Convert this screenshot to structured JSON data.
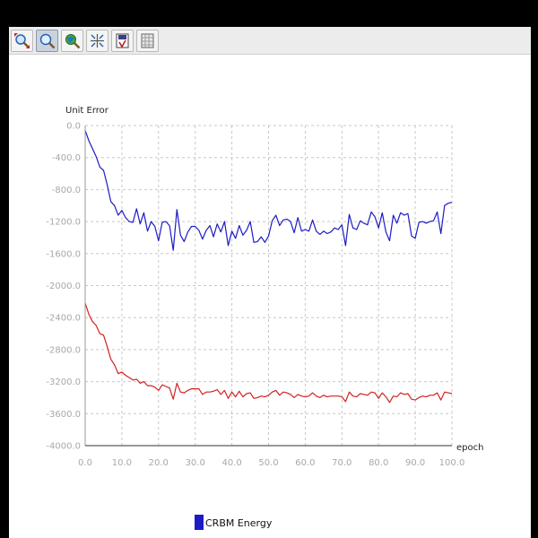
{
  "toolbar": {
    "buttons": [
      {
        "icon": "zoom-fit-icon",
        "active": false
      },
      {
        "icon": "zoom-icon",
        "active": true
      },
      {
        "icon": "pan-icon",
        "active": false
      },
      {
        "icon": "crosshair-icon",
        "active": false
      },
      {
        "icon": "save-icon",
        "active": false
      },
      {
        "icon": "table-icon",
        "active": false
      }
    ]
  },
  "chart_data": {
    "type": "line",
    "title": "",
    "xlabel": "epoch",
    "ylabel": "Unit Error",
    "xlim": [
      0,
      100
    ],
    "ylim": [
      -4000,
      0
    ],
    "grid": true,
    "legend": "bottom-center",
    "xticks": [
      0,
      10,
      20,
      30,
      40,
      50,
      60,
      70,
      80,
      90,
      100
    ],
    "yticks": [
      0,
      -400,
      -800,
      -1200,
      -1600,
      -2000,
      -2400,
      -2800,
      -3200,
      -3600,
      -4000
    ],
    "xtick_labels": [
      "0.0",
      "10.0",
      "20.0",
      "30.0",
      "40.0",
      "50.0",
      "60.0",
      "70.0",
      "80.0",
      "90.0",
      "100.0"
    ],
    "ytick_labels": [
      "0.0",
      "-400.0",
      "-800.0",
      "-1200.0",
      "-1600.0",
      "-2000.0",
      "-2400.0",
      "-2800.0",
      "-3200.0",
      "-3600.0",
      "-4000.0"
    ],
    "series": [
      {
        "name": "CRBM Energy",
        "color": "#1c1cc4",
        "x": [
          0,
          1,
          2,
          3,
          4,
          5,
          6,
          7,
          8,
          9,
          10,
          11,
          12,
          13,
          14,
          15,
          16,
          17,
          18,
          19,
          20,
          21,
          22,
          23,
          24,
          25,
          26,
          27,
          28,
          29,
          30,
          31,
          32,
          33,
          34,
          35,
          36,
          37,
          38,
          39,
          40,
          41,
          42,
          43,
          44,
          45,
          46,
          47,
          48,
          49,
          50,
          51,
          52,
          53,
          54,
          55,
          56,
          57,
          58,
          59,
          60,
          61,
          62,
          63,
          64,
          65,
          66,
          67,
          68,
          69,
          70,
          71,
          72,
          73,
          74,
          75,
          76,
          77,
          78,
          79,
          80,
          81,
          82,
          83,
          84,
          85,
          86,
          87,
          88,
          89,
          90,
          91,
          92,
          93,
          94,
          95,
          96,
          97,
          98,
          99,
          100
        ],
        "values": [
          -60,
          -190,
          -290,
          -390,
          -520,
          -560,
          -740,
          -950,
          -1000,
          -1120,
          -1060,
          -1150,
          -1200,
          -1210,
          -1040,
          -1230,
          -1090,
          -1320,
          -1200,
          -1260,
          -1440,
          -1210,
          -1200,
          -1250,
          -1560,
          -1050,
          -1370,
          -1450,
          -1330,
          -1260,
          -1260,
          -1310,
          -1420,
          -1310,
          -1250,
          -1390,
          -1230,
          -1330,
          -1200,
          -1500,
          -1320,
          -1410,
          -1250,
          -1370,
          -1310,
          -1200,
          -1460,
          -1450,
          -1390,
          -1460,
          -1380,
          -1190,
          -1120,
          -1250,
          -1180,
          -1170,
          -1200,
          -1340,
          -1150,
          -1320,
          -1300,
          -1320,
          -1180,
          -1320,
          -1360,
          -1320,
          -1350,
          -1330,
          -1280,
          -1300,
          -1240,
          -1500,
          -1110,
          -1280,
          -1300,
          -1190,
          -1220,
          -1240,
          -1080,
          -1140,
          -1280,
          -1090,
          -1330,
          -1440,
          -1120,
          -1220,
          -1090,
          -1120,
          -1100,
          -1380,
          -1410,
          -1210,
          -1200,
          -1220,
          -1200,
          -1190,
          -1080,
          -1350,
          -1000,
          -970,
          -960
        ]
      },
      {
        "name": "",
        "color": "#d32020",
        "x": [
          0,
          1,
          2,
          3,
          4,
          5,
          6,
          7,
          8,
          9,
          10,
          11,
          12,
          13,
          14,
          15,
          16,
          17,
          18,
          19,
          20,
          21,
          22,
          23,
          24,
          25,
          26,
          27,
          28,
          29,
          30,
          31,
          32,
          33,
          34,
          35,
          36,
          37,
          38,
          39,
          40,
          41,
          42,
          43,
          44,
          45,
          46,
          47,
          48,
          49,
          50,
          51,
          52,
          53,
          54,
          55,
          56,
          57,
          58,
          59,
          60,
          61,
          62,
          63,
          64,
          65,
          66,
          67,
          68,
          69,
          70,
          71,
          72,
          73,
          74,
          75,
          76,
          77,
          78,
          79,
          80,
          81,
          82,
          83,
          84,
          85,
          86,
          87,
          88,
          89,
          90,
          91,
          92,
          93,
          94,
          95,
          96,
          97,
          98,
          99,
          100
        ],
        "values": [
          -2220,
          -2360,
          -2450,
          -2500,
          -2600,
          -2620,
          -2760,
          -2920,
          -2990,
          -3100,
          -3080,
          -3120,
          -3150,
          -3180,
          -3170,
          -3220,
          -3200,
          -3250,
          -3250,
          -3270,
          -3310,
          -3240,
          -3260,
          -3280,
          -3420,
          -3220,
          -3330,
          -3340,
          -3310,
          -3290,
          -3290,
          -3290,
          -3360,
          -3330,
          -3330,
          -3320,
          -3300,
          -3360,
          -3310,
          -3410,
          -3330,
          -3390,
          -3320,
          -3390,
          -3350,
          -3340,
          -3410,
          -3400,
          -3380,
          -3390,
          -3370,
          -3330,
          -3310,
          -3370,
          -3330,
          -3340,
          -3360,
          -3400,
          -3360,
          -3380,
          -3390,
          -3380,
          -3340,
          -3380,
          -3400,
          -3370,
          -3390,
          -3380,
          -3380,
          -3380,
          -3390,
          -3450,
          -3330,
          -3380,
          -3390,
          -3350,
          -3360,
          -3370,
          -3330,
          -3340,
          -3410,
          -3340,
          -3390,
          -3460,
          -3380,
          -3390,
          -3340,
          -3360,
          -3350,
          -3420,
          -3430,
          -3400,
          -3380,
          -3390,
          -3370,
          -3370,
          -3340,
          -3430,
          -3330,
          -3340,
          -3350
        ]
      }
    ]
  }
}
